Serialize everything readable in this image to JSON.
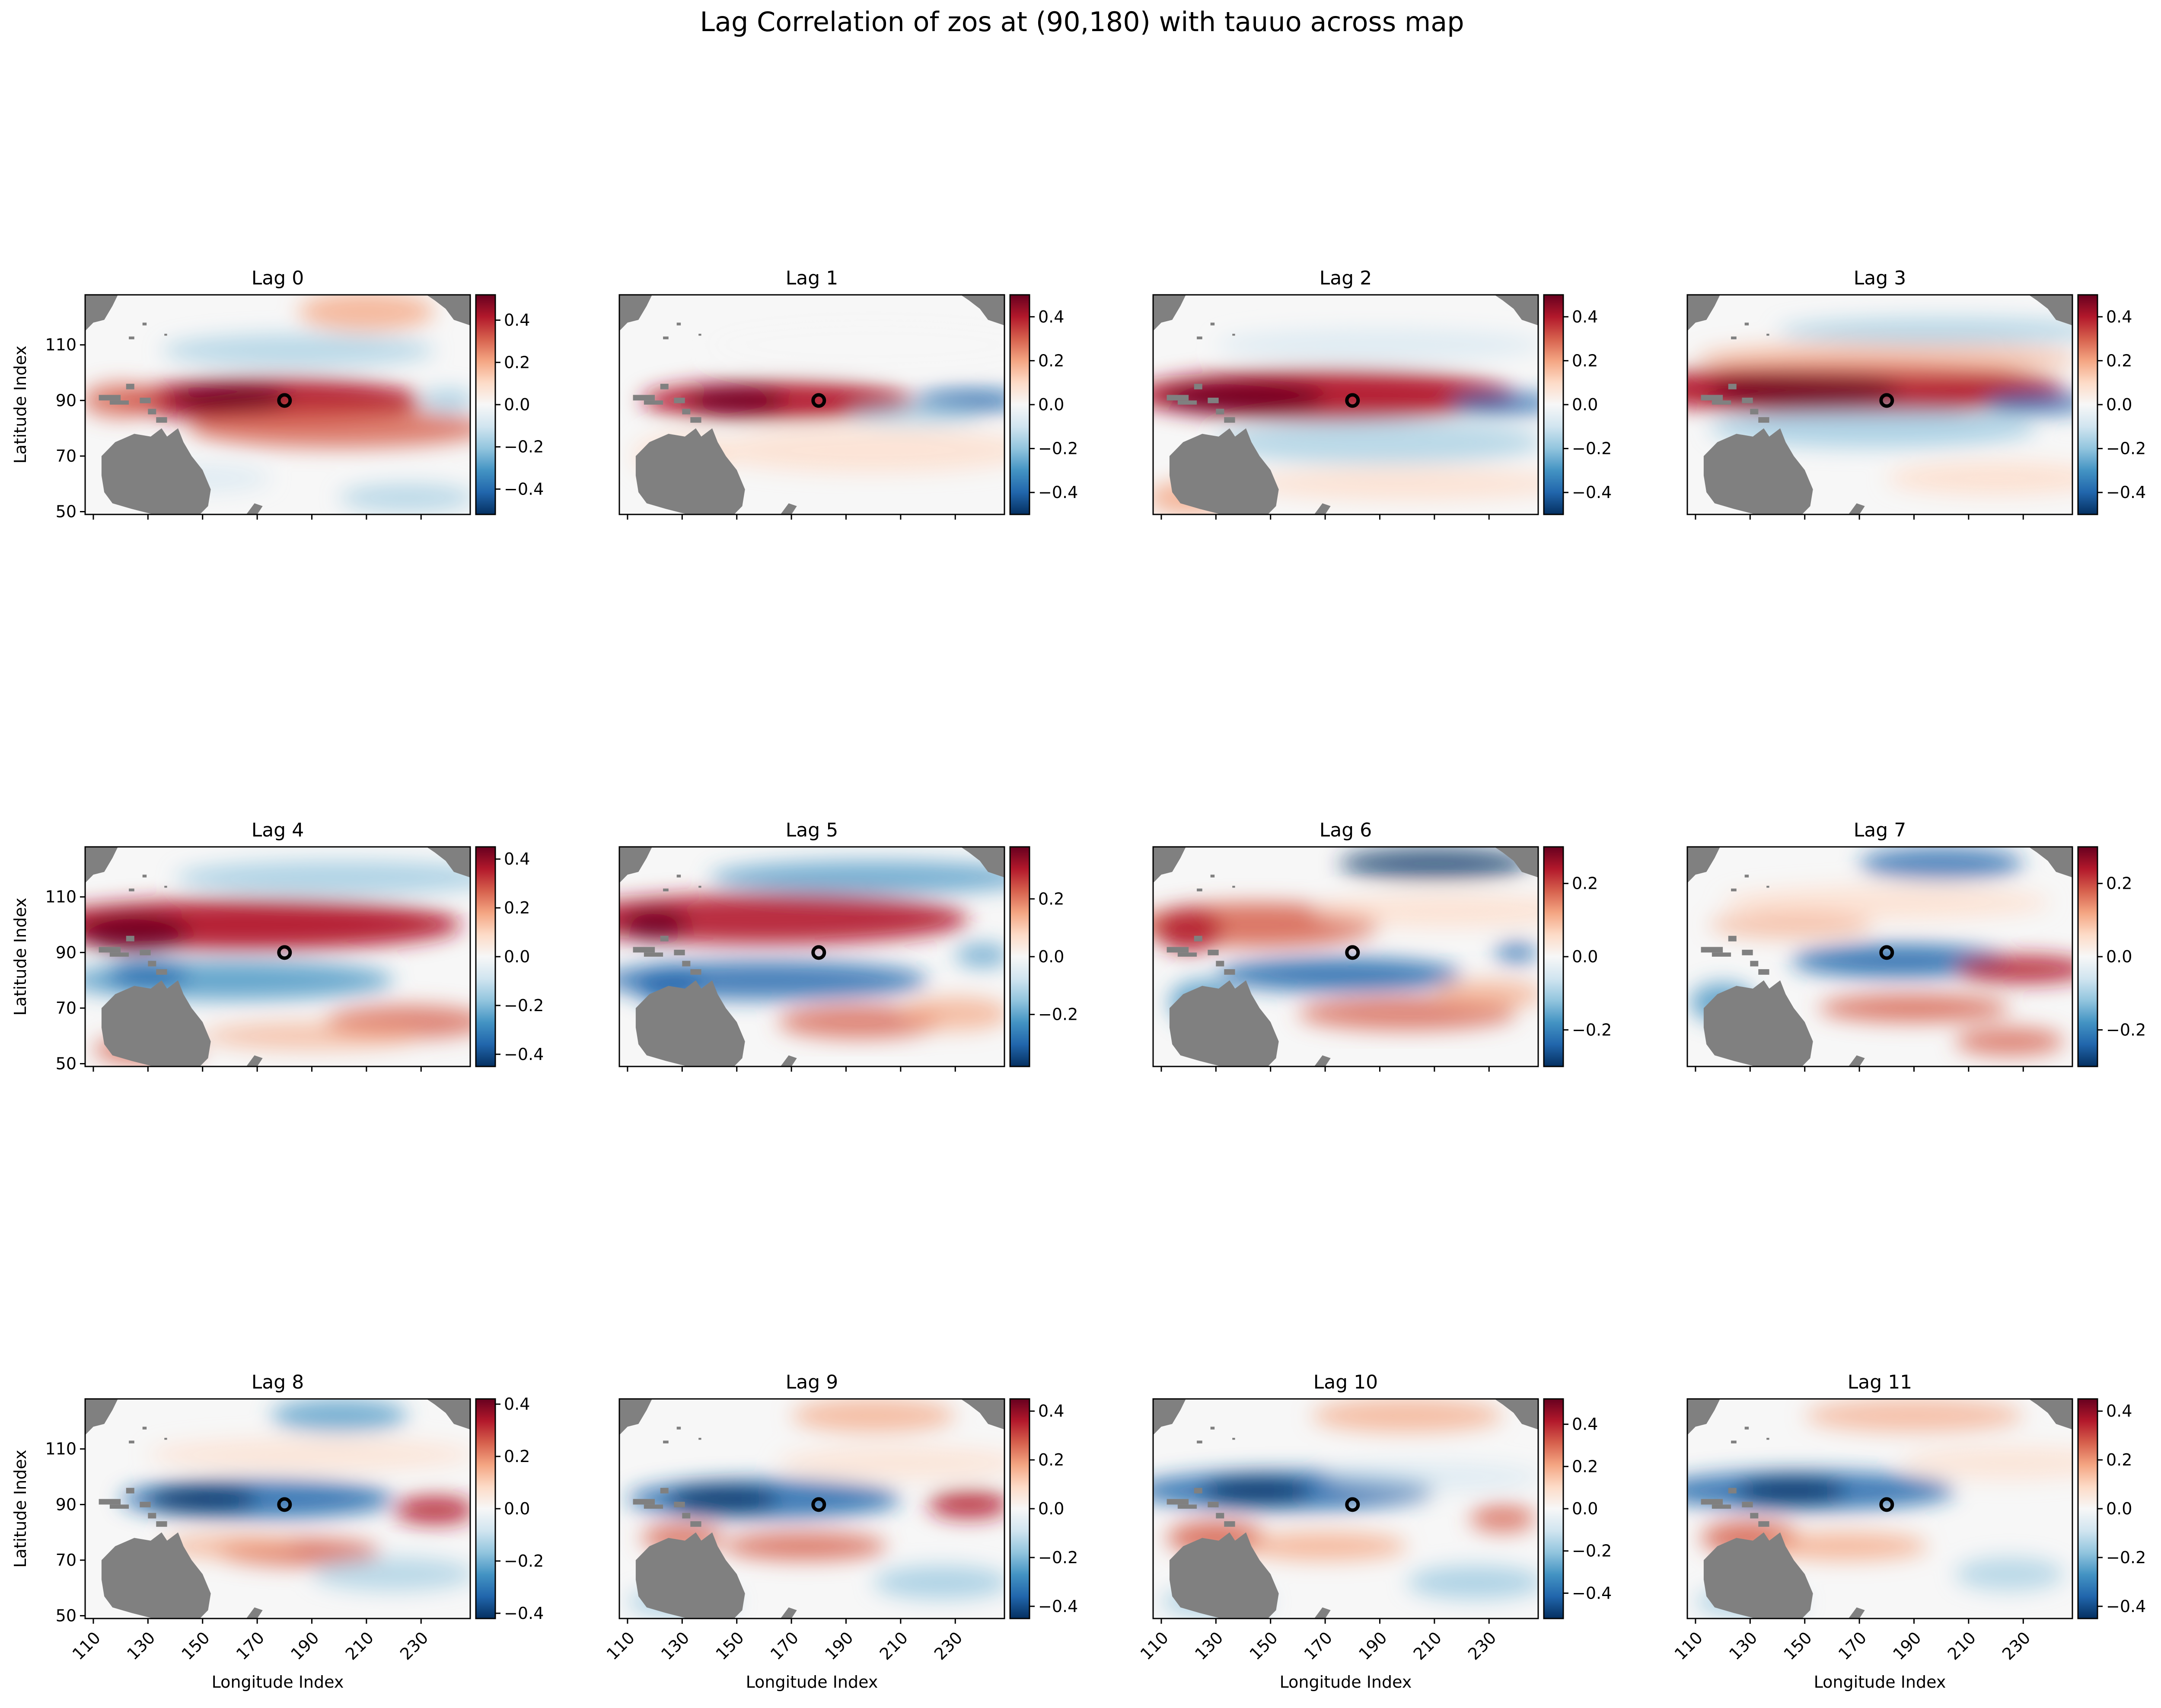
{
  "figure": {
    "title": "Lag Correlation of zos at (90,180) with tauuo across map"
  },
  "chart_data": {
    "type": "heatmap",
    "colormap": "RdBu_r",
    "land_color": "#808080",
    "marker": {
      "lon": 180,
      "lat": 90,
      "style": "open-circle"
    },
    "xlabel": "Longitude Index",
    "ylabel": "Latitude Index",
    "xlim": [
      107,
      248
    ],
    "ylim": [
      49,
      128
    ],
    "xticks": [
      110,
      130,
      150,
      170,
      190,
      210,
      230
    ],
    "yticks": [
      50,
      70,
      90,
      110
    ],
    "grid": false,
    "panels": [
      {
        "title": "Lag 0",
        "clim": [
          -0.52,
          0.52
        ],
        "cbar_ticks": [
          -0.4,
          -0.2,
          0.0,
          0.2,
          0.4
        ],
        "cbar_labels": [
          "−0.4",
          "−0.2",
          "0.0",
          "0.2",
          "0.4"
        ]
      },
      {
        "title": "Lag 1",
        "clim": [
          -0.5,
          0.5
        ],
        "cbar_ticks": [
          -0.4,
          -0.2,
          0.0,
          0.2,
          0.4
        ],
        "cbar_labels": [
          "−0.4",
          "−0.2",
          "0.0",
          "0.2",
          "0.4"
        ]
      },
      {
        "title": "Lag 2",
        "clim": [
          -0.5,
          0.5
        ],
        "cbar_ticks": [
          -0.4,
          -0.2,
          0.0,
          0.2,
          0.4
        ],
        "cbar_labels": [
          "−0.4",
          "−0.2",
          "0.0",
          "0.2",
          "0.4"
        ]
      },
      {
        "title": "Lag 3",
        "clim": [
          -0.5,
          0.5
        ],
        "cbar_ticks": [
          -0.4,
          -0.2,
          0.0,
          0.2,
          0.4
        ],
        "cbar_labels": [
          "−0.4",
          "−0.2",
          "0.0",
          "0.2",
          "0.4"
        ]
      },
      {
        "title": "Lag 4",
        "clim": [
          -0.45,
          0.45
        ],
        "cbar_ticks": [
          -0.4,
          -0.2,
          0.0,
          0.2,
          0.4
        ],
        "cbar_labels": [
          "−0.4",
          "−0.2",
          "0.0",
          "0.2",
          "0.4"
        ]
      },
      {
        "title": "Lag 5",
        "clim": [
          -0.38,
          0.38
        ],
        "cbar_ticks": [
          -0.2,
          0.0,
          0.2
        ],
        "cbar_labels": [
          "−0.2",
          "0.0",
          "0.2"
        ]
      },
      {
        "title": "Lag 6",
        "clim": [
          -0.3,
          0.3
        ],
        "cbar_ticks": [
          -0.2,
          0.0,
          0.2
        ],
        "cbar_labels": [
          "−0.2",
          "0.0",
          "0.2"
        ]
      },
      {
        "title": "Lag 7",
        "clim": [
          -0.3,
          0.3
        ],
        "cbar_ticks": [
          -0.2,
          0.0,
          0.2
        ],
        "cbar_labels": [
          "−0.2",
          "0.0",
          "0.2"
        ]
      },
      {
        "title": "Lag 8",
        "clim": [
          -0.42,
          0.42
        ],
        "cbar_ticks": [
          -0.4,
          -0.2,
          0.0,
          0.2,
          0.4
        ],
        "cbar_labels": [
          "−0.4",
          "−0.2",
          "0.0",
          "0.2",
          "0.4"
        ]
      },
      {
        "title": "Lag 9",
        "clim": [
          -0.45,
          0.45
        ],
        "cbar_ticks": [
          -0.4,
          -0.2,
          0.0,
          0.2,
          0.4
        ],
        "cbar_labels": [
          "−0.4",
          "−0.2",
          "0.0",
          "0.2",
          "0.4"
        ]
      },
      {
        "title": "Lag 10",
        "clim": [
          -0.52,
          0.52
        ],
        "cbar_ticks": [
          -0.4,
          -0.2,
          0.0,
          0.2,
          0.4
        ],
        "cbar_labels": [
          "−0.4",
          "−0.2",
          "0.0",
          "0.2",
          "0.4"
        ]
      },
      {
        "title": "Lag 11",
        "clim": [
          -0.45,
          0.45
        ],
        "cbar_ticks": [
          -0.4,
          -0.2,
          0.0,
          0.2,
          0.4
        ],
        "cbar_labels": [
          "−0.4",
          "−0.2",
          "0.0",
          "0.2",
          "0.4"
        ]
      }
    ]
  }
}
